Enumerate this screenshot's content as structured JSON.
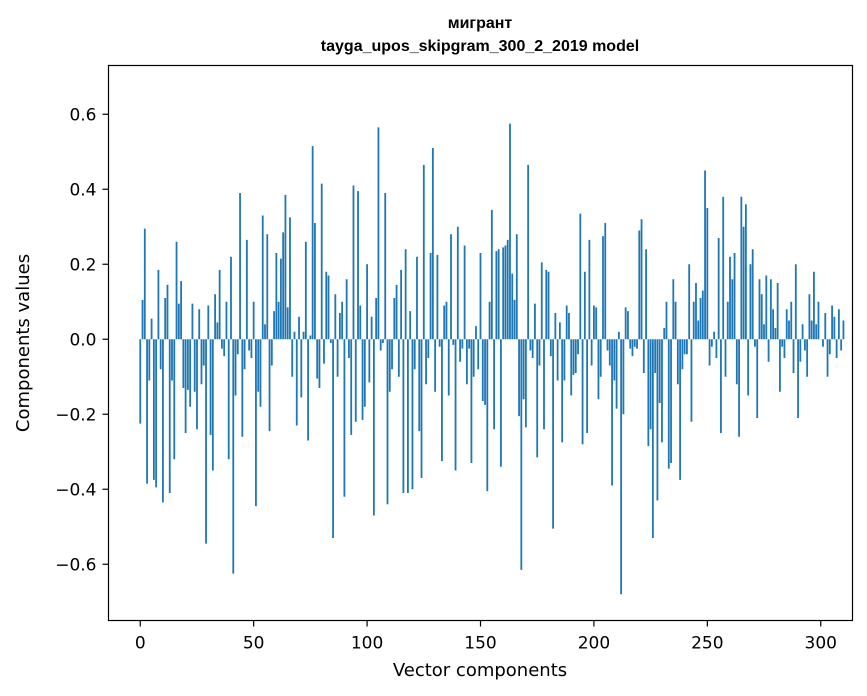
{
  "chart_data": {
    "type": "bar",
    "title": "мигрант",
    "subtitle": "tayga_upos_skipgram_300_2_2019 model",
    "xlabel": "Vector components",
    "ylabel": "Components values",
    "xlim": [
      -14,
      314
    ],
    "ylim": [
      -0.75,
      0.73
    ],
    "xticks": [
      0,
      50,
      100,
      150,
      200,
      250,
      300
    ],
    "yticks": [
      -0.6,
      -0.4,
      -0.2,
      0.0,
      0.2,
      0.4,
      0.6
    ],
    "ytick_labels": [
      "−0.6",
      "−0.4",
      "−0.2",
      "0.0",
      "0.2",
      "0.4",
      "0.6"
    ],
    "bar_color": "#1f77b4",
    "grid": false,
    "values": [
      -0.225,
      0.105,
      0.295,
      -0.385,
      -0.11,
      0.055,
      -0.375,
      -0.395,
      0.185,
      -0.08,
      -0.435,
      0.11,
      0.145,
      -0.41,
      -0.11,
      -0.32,
      0.26,
      0.095,
      0.155,
      -0.13,
      -0.25,
      -0.135,
      -0.18,
      0.095,
      -0.14,
      -0.24,
      0.08,
      -0.12,
      -0.07,
      -0.545,
      0.09,
      -0.255,
      -0.35,
      0.12,
      0.045,
      0.185,
      -0.025,
      -0.045,
      0.1,
      -0.32,
      0.22,
      -0.625,
      -0.15,
      -0.04,
      0.39,
      -0.26,
      -0.08,
      0.265,
      -0.03,
      -0.05,
      0.1,
      -0.445,
      -0.14,
      -0.18,
      0.33,
      0.04,
      0.28,
      -0.245,
      -0.07,
      0.075,
      0.23,
      0.1,
      0.215,
      0.285,
      0.385,
      0.085,
      0.325,
      -0.1,
      0.02,
      -0.23,
      0.06,
      -0.155,
      0.02,
      0.26,
      -0.27,
      0.01,
      0.515,
      0.31,
      -0.105,
      -0.13,
      0.415,
      -0.065,
      0.18,
      0.17,
      -0.01,
      -0.53,
      0.12,
      -0.1,
      0.07,
      0.1,
      -0.42,
      0.16,
      -0.05,
      -0.255,
      0.41,
      -0.22,
      0.395,
      0.09,
      -0.215,
      -0.18,
      0.2,
      -0.115,
      0.06,
      -0.47,
      0.11,
      0.565,
      -0.03,
      -0.01,
      0.39,
      -0.44,
      -0.14,
      -0.08,
      0.11,
      0.145,
      -0.1,
      0.185,
      -0.41,
      0.24,
      -0.41,
      0.075,
      -0.4,
      -0.08,
      0.22,
      -0.245,
      -0.37,
      0.465,
      -0.12,
      -0.05,
      0.23,
      0.51,
      -0.14,
      0.225,
      -0.02,
      -0.325,
      0.09,
      0.1,
      -0.15,
      0.28,
      -0.015,
      -0.35,
      0.3,
      -0.06,
      -0.025,
      0.25,
      -0.12,
      -0.025,
      -0.33,
      -0.1,
      0.035,
      -0.08,
      0.23,
      -0.165,
      -0.175,
      -0.405,
      0.1,
      0.345,
      -0.24,
      0.235,
      0.24,
      -0.34,
      0.245,
      0.25,
      0.265,
      0.575,
      0.175,
      0.105,
      0.28,
      -0.205,
      -0.615,
      -0.16,
      -0.235,
      0.465,
      -0.03,
      -0.05,
      0.095,
      -0.315,
      -0.07,
      0.205,
      -0.24,
      0.185,
      0.18,
      -0.045,
      -0.505,
      0.07,
      -0.11,
      0.045,
      -0.275,
      -0.11,
      0.09,
      0.07,
      -0.15,
      -0.095,
      -0.09,
      -0.04,
      0.335,
      -0.28,
      0.18,
      -0.25,
      0.265,
      -0.07,
      0.09,
      0.085,
      -0.16,
      -0.1,
      0.275,
      0.31,
      -0.03,
      -0.07,
      -0.39,
      -0.11,
      -0.185,
      0.02,
      -0.68,
      -0.2,
      0.085,
      0.075,
      -0.025,
      -0.045,
      -0.02,
      -0.025,
      0.29,
      0.32,
      -0.09,
      0.24,
      -0.285,
      -0.24,
      -0.53,
      -0.09,
      -0.43,
      -0.17,
      -0.275,
      0.03,
      0.1,
      -0.345,
      -0.33,
      0.16,
      0.1,
      -0.12,
      -0.375,
      -0.08,
      -0.04,
      -0.04,
      0.2,
      -0.22,
      0.1,
      0.15,
      0.05,
      0.11,
      0.13,
      0.45,
      0.35,
      -0.07,
      -0.02,
      0.02,
      -0.05,
      0.27,
      -0.25,
      0.38,
      -0.1,
      0.1,
      0.22,
      0.16,
      0.23,
      -0.12,
      -0.26,
      0.38,
      0.3,
      0.36,
      -0.15,
      0.2,
      0.24,
      -0.02,
      -0.21,
      0.16,
      0.12,
      0.04,
      0.17,
      -0.06,
      0.16,
      0.08,
      0.03,
      0.15,
      -0.14,
      -0.02,
      -0.05,
      0.08,
      0.05,
      0.1,
      -0.09,
      0.2,
      -0.21,
      -0.06,
      0.04,
      -0.03,
      -0.1,
      0.12,
      0.05,
      0.18,
      0.04,
      0.1,
      0.0,
      -0.02,
      0.07,
      -0.1,
      -0.04,
      0.09,
      0.06,
      -0.05,
      0.08,
      -0.03,
      0.05
    ]
  }
}
